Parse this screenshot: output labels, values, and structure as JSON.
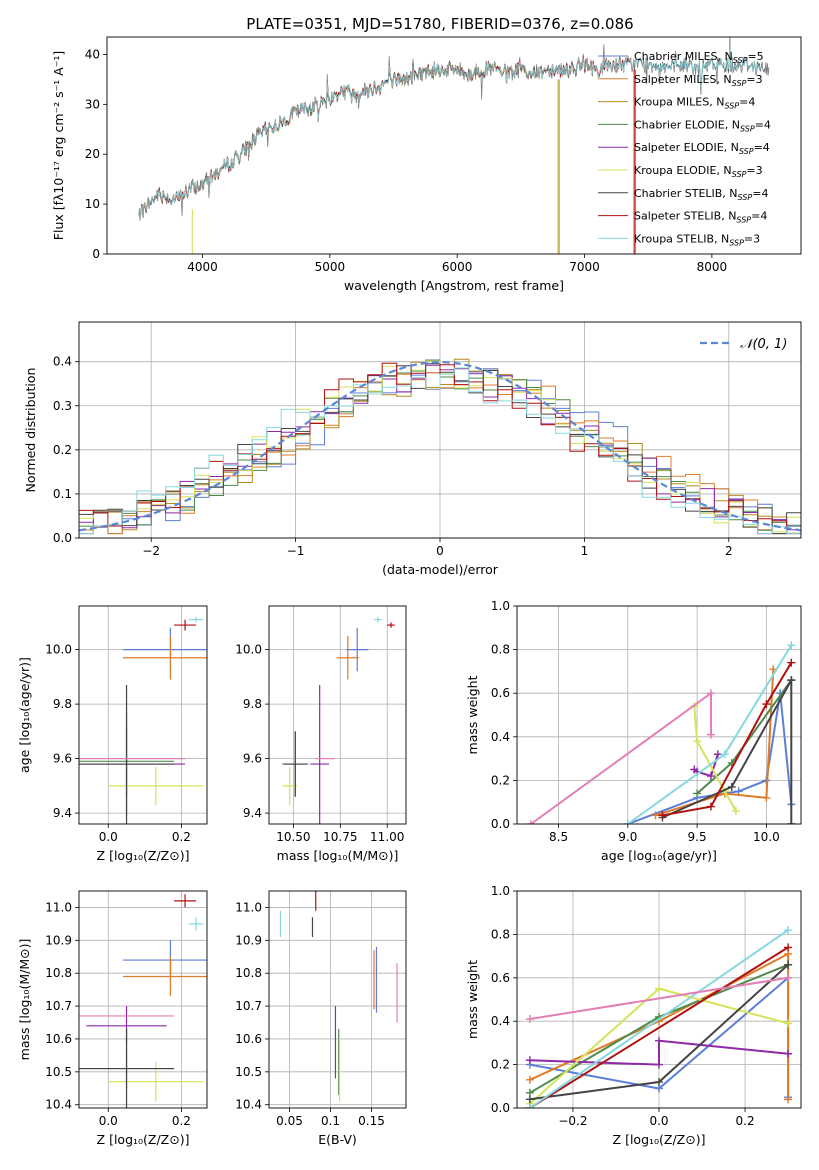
{
  "figure": {
    "title": "PLATE=0351, MJD=51780, FIBERID=0376, z=0.086"
  },
  "palette": {
    "chabrier_miles": "#5b7fd6",
    "salpeter_miles": "#e07b28",
    "kroupa_miles": "#b58b1e",
    "chabrier_elodie": "#4e8a4a",
    "salpeter_elodie": "#8e2aa8",
    "kroupa_elodie": "#d4e35a",
    "chabrier_stelib": "#444444",
    "salpeter_stelib": "#b01010",
    "kroupa_stelib": "#86d8df",
    "pink": "#e37fb5",
    "gaussian": "#5b87d6",
    "grid": "#b0b0b0"
  },
  "chart_data": [
    {
      "id": "spectrum",
      "type": "line",
      "title": "PLATE=0351, MJD=51780, FIBERID=0376, z=0.086",
      "xlabel": "wavelength [Angstrom, rest frame]",
      "ylabel": "Flux [fλ10⁻¹⁷ erg cm⁻² s⁻¹ A⁻¹]",
      "xlim": [
        3250,
        8700
      ],
      "ylim": [
        0,
        43.5
      ],
      "xticks": [
        4000,
        5000,
        6000,
        7000,
        8000
      ],
      "yticks": [
        0,
        10,
        20,
        30,
        40
      ],
      "grid": false,
      "legend_position": "right",
      "continuum": [
        [
          3500,
          8
        ],
        [
          3650,
          12
        ],
        [
          3800,
          11
        ],
        [
          3900,
          13
        ],
        [
          4000,
          14
        ],
        [
          4100,
          16
        ],
        [
          4200,
          18
        ],
        [
          4300,
          20
        ],
        [
          4400,
          23
        ],
        [
          4500,
          25
        ],
        [
          4600,
          26
        ],
        [
          4700,
          28
        ],
        [
          4800,
          29
        ],
        [
          4900,
          30
        ],
        [
          5000,
          31
        ],
        [
          5100,
          33
        ],
        [
          5200,
          32
        ],
        [
          5300,
          33
        ],
        [
          5400,
          34
        ],
        [
          5500,
          35
        ],
        [
          5600,
          35
        ],
        [
          5700,
          36
        ],
        [
          5800,
          37
        ],
        [
          5900,
          37
        ],
        [
          6000,
          37
        ],
        [
          6100,
          36
        ],
        [
          6200,
          37
        ],
        [
          6300,
          37
        ],
        [
          6400,
          36
        ],
        [
          6500,
          37
        ],
        [
          6600,
          36
        ],
        [
          6700,
          37
        ],
        [
          6800,
          37
        ],
        [
          6900,
          37
        ],
        [
          7000,
          38
        ],
        [
          7100,
          37
        ],
        [
          7200,
          38
        ],
        [
          7300,
          38
        ],
        [
          7400,
          38
        ],
        [
          7500,
          38
        ],
        [
          7600,
          38
        ],
        [
          7700,
          37
        ],
        [
          7800,
          38
        ],
        [
          7900,
          37
        ],
        [
          8000,
          38
        ],
        [
          8100,
          38
        ],
        [
          8200,
          38
        ],
        [
          8300,
          38
        ],
        [
          8400,
          37
        ]
      ],
      "series": [
        {
          "name": "Chabrier MILES, N_SSP=5",
          "legend": [
            "Chabrier MILES, N",
            "SSP",
            "=5"
          ],
          "color": "#5b7fd6",
          "start": 3500,
          "end": 7250
        },
        {
          "name": "Salpeter MILES, N_SSP=3",
          "legend": [
            "Salpeter MILES, N",
            "SSP",
            "=3"
          ],
          "color": "#e07b28",
          "start": 3500,
          "end": 7250
        },
        {
          "name": "Kroupa MILES, N_SSP=4",
          "legend": [
            "Kroupa MILES, N",
            "SSP",
            "=4"
          ],
          "color": "#b58b1e",
          "start": 3500,
          "end": 6800
        },
        {
          "name": "Chabrier ELODIE, N_SSP=4",
          "legend": [
            "Chabrier ELODIE, N",
            "SSP",
            "=4"
          ],
          "color": "#4e8a4a",
          "start": 3900,
          "end": 6800
        },
        {
          "name": "Salpeter ELODIE, N_SSP=4",
          "legend": [
            "Salpeter ELODIE, N",
            "SSP",
            "=4"
          ],
          "color": "#8e2aa8",
          "start": 3900,
          "end": 6800
        },
        {
          "name": "Kroupa ELODIE, N_SSP=3",
          "legend": [
            "Kroupa ELODIE, N",
            "SSP",
            "=3"
          ],
          "color": "#d4e35a",
          "start": 3900,
          "end": 6800
        },
        {
          "name": "Chabrier STELIB, N_SSP=4",
          "legend": [
            "Chabrier STELIB, N",
            "SSP",
            "=4"
          ],
          "color": "#444444",
          "start": 3500,
          "end": 8400
        },
        {
          "name": "Salpeter STELIB, N_SSP=4",
          "legend": [
            "Salpeter STELIB, N",
            "SSP",
            "=4"
          ],
          "color": "#b01010",
          "start": 3500,
          "end": 7400
        },
        {
          "name": "Kroupa STELIB, N_SSP=3",
          "legend": [
            "Kroupa STELIB, N",
            "SSP",
            "=3"
          ],
          "color": "#86d8df",
          "start": 3500,
          "end": 8400
        }
      ]
    },
    {
      "id": "residuals",
      "type": "histogram",
      "xlabel": "(data-model)/error",
      "ylabel": "Normed distribution",
      "xlim": [
        -2.5,
        2.5
      ],
      "ylim": [
        0,
        0.49
      ],
      "xticks": [
        -2,
        -1,
        0,
        1,
        2
      ],
      "yticks": [
        0.0,
        0.1,
        0.2,
        0.3,
        0.4
      ],
      "grid": true,
      "legend_position": "top-right",
      "legend": "𝒩(0, 1)",
      "bin_width": 0.1
    },
    {
      "id": "age_vs_Z",
      "type": "scatter",
      "xlabel": "Z [log₁₀(Z/Z⊙)]",
      "ylabel": "age  [log₁₀(age/yr)]",
      "xlim": [
        -0.08,
        0.27
      ],
      "ylim": [
        9.36,
        10.16
      ],
      "xticks": [
        0.0,
        0.2
      ],
      "yticks": [
        9.4,
        9.6,
        9.8,
        10.0
      ],
      "grid": true,
      "points": [
        {
          "color": "#5b7fd6",
          "x": 0.17,
          "xerr": 0.13,
          "y": 10.0,
          "yerr": 0.08
        },
        {
          "color": "#e07b28",
          "x": 0.17,
          "xerr": 0.13,
          "y": 9.97,
          "yerr": 0.08
        },
        {
          "color": "#4e8a4a",
          "x": 0.05,
          "xerr": 0.13,
          "y": 9.59,
          "yerr": 0.13
        },
        {
          "color": "#8e2aa8",
          "x": 0.05,
          "xerr": 0.16,
          "y": 9.58,
          "yerr": 0.19
        },
        {
          "color": "#d4e35a",
          "x": 0.13,
          "xerr": 0.13,
          "y": 9.5,
          "yerr": 0.07
        },
        {
          "color": "#444444",
          "x": 0.05,
          "xerr": 0.13,
          "y": 9.58,
          "yerr": 0.29
        },
        {
          "color": "#b01010",
          "x": 0.21,
          "xerr": 0.03,
          "y": 10.09,
          "yerr": 0.02
        },
        {
          "color": "#86d8df",
          "x": 0.24,
          "xerr": 0.02,
          "y": 10.11,
          "yerr": 0.01
        },
        {
          "color": "#e37fb5",
          "x": 0.05,
          "xerr": 0.16,
          "y": 9.6,
          "yerr": 0.0
        }
      ]
    },
    {
      "id": "age_vs_mass",
      "type": "scatter",
      "xlabel": "mass [log₁₀(M/M⊙)]",
      "xlim": [
        10.37,
        11.1
      ],
      "ylim": [
        9.36,
        10.16
      ],
      "xticks": [
        10.5,
        10.75,
        11.0
      ],
      "yticks": [
        9.4,
        9.6,
        9.8,
        10.0
      ],
      "grid": true,
      "points": [
        {
          "color": "#5b7fd6",
          "x": 10.84,
          "xerr": 0.06,
          "y": 10.0,
          "yerr": 0.08
        },
        {
          "color": "#e07b28",
          "x": 10.79,
          "xerr": 0.06,
          "y": 9.97,
          "yerr": 0.08
        },
        {
          "color": "#4e8a4a",
          "x": 10.51,
          "xerr": 0.07,
          "y": 9.58,
          "yerr": 0.12
        },
        {
          "color": "#8e2aa8",
          "x": 10.64,
          "xerr": 0.05,
          "y": 9.58,
          "yerr": 0.29
        },
        {
          "color": "#d4e35a",
          "x": 10.48,
          "xerr": 0.04,
          "y": 9.5,
          "yerr": 0.07
        },
        {
          "color": "#444444",
          "x": 10.51,
          "xerr": 0.06,
          "y": 9.58,
          "yerr": 0.12
        },
        {
          "color": "#b01010",
          "x": 11.02,
          "xerr": 0.02,
          "y": 10.09,
          "yerr": 0.01
        },
        {
          "color": "#86d8df",
          "x": 10.95,
          "xerr": 0.02,
          "y": 10.11,
          "yerr": 0.01
        },
        {
          "color": "#e37fb5",
          "x": 10.67,
          "xerr": 0.05,
          "y": 9.6,
          "yerr": 0.0
        }
      ]
    },
    {
      "id": "weight_vs_age",
      "type": "line",
      "xlabel": "age  [log₁₀(age/yr)]",
      "ylabel": "mass weight",
      "xlim": [
        8.2,
        10.25
      ],
      "ylim": [
        0,
        1.0
      ],
      "xticks": [
        8.5,
        9.0,
        9.5,
        10.0
      ],
      "yticks": [
        0.0,
        0.2,
        0.4,
        0.6,
        0.8,
        1.0
      ],
      "grid": true,
      "series": [
        {
          "color": "#5b7fd6",
          "points": [
            [
              9.0,
              0.0
            ],
            [
              9.5,
              0.12
            ],
            [
              9.8,
              0.15
            ],
            [
              10.0,
              0.2
            ],
            [
              10.1,
              0.6
            ],
            [
              10.18,
              0.09
            ]
          ]
        },
        {
          "color": "#e07b28",
          "points": [
            [
              9.2,
              0.04
            ],
            [
              9.7,
              0.14
            ],
            [
              10.0,
              0.12
            ],
            [
              10.05,
              0.71
            ]
          ]
        },
        {
          "color": "#4e8a4a",
          "points": [
            [
              9.5,
              0.14
            ],
            [
              9.75,
              0.28
            ],
            [
              10.18,
              0.66
            ]
          ]
        },
        {
          "color": "#8e2aa8",
          "points": [
            [
              9.48,
              0.25
            ],
            [
              9.5,
              0.24
            ],
            [
              9.6,
              0.22
            ],
            [
              9.65,
              0.32
            ]
          ]
        },
        {
          "color": "#d4e35a",
          "points": [
            [
              9.48,
              0.54
            ],
            [
              9.5,
              0.38
            ],
            [
              9.7,
              0.15
            ],
            [
              9.78,
              0.06
            ]
          ]
        },
        {
          "color": "#444444",
          "points": [
            [
              9.25,
              0.03
            ],
            [
              9.75,
              0.17
            ],
            [
              10.18,
              0.66
            ],
            [
              10.18,
              0.0
            ]
          ]
        },
        {
          "color": "#b01010",
          "points": [
            [
              9.25,
              0.04
            ],
            [
              9.6,
              0.08
            ],
            [
              10.0,
              0.55
            ],
            [
              10.18,
              0.74
            ]
          ]
        },
        {
          "color": "#86d8df",
          "points": [
            [
              9.0,
              0.0
            ],
            [
              9.7,
              0.32
            ],
            [
              10.18,
              0.82
            ]
          ]
        },
        {
          "color": "#e37fb5",
          "points": [
            [
              8.3,
              0.0
            ],
            [
              9.6,
              0.6
            ],
            [
              9.6,
              0.41
            ]
          ]
        }
      ]
    },
    {
      "id": "mass_vs_Z",
      "type": "scatter",
      "xlabel": "Z [log₁₀(Z/Z⊙)]",
      "ylabel": "mass [log₁₀(M/M⊙)]",
      "xlim": [
        -0.08,
        0.27
      ],
      "ylim": [
        10.39,
        11.05
      ],
      "xticks": [
        0.0,
        0.2
      ],
      "yticks": [
        10.4,
        10.5,
        10.6,
        10.7,
        10.8,
        10.9,
        11.0
      ],
      "grid": true,
      "points": [
        {
          "color": "#5b7fd6",
          "x": 0.17,
          "xerr": 0.13,
          "y": 10.84,
          "yerr": 0.06
        },
        {
          "color": "#e07b28",
          "x": 0.17,
          "xerr": 0.13,
          "y": 10.79,
          "yerr": 0.06
        },
        {
          "color": "#4e8a4a",
          "x": 0.05,
          "xerr": 0.13,
          "y": 10.51,
          "yerr": 0.06
        },
        {
          "color": "#8e2aa8",
          "x": 0.05,
          "xerr": 0.11,
          "y": 10.64,
          "yerr": 0.06
        },
        {
          "color": "#d4e35a",
          "x": 0.13,
          "xerr": 0.13,
          "y": 10.47,
          "yerr": 0.06
        },
        {
          "color": "#444444",
          "x": 0.05,
          "xerr": 0.13,
          "y": 10.51,
          "yerr": 0.12
        },
        {
          "color": "#b01010",
          "x": 0.21,
          "xerr": 0.03,
          "y": 11.02,
          "yerr": 0.02
        },
        {
          "color": "#86d8df",
          "x": 0.24,
          "xerr": 0.02,
          "y": 10.95,
          "yerr": 0.02
        },
        {
          "color": "#e37fb5",
          "x": 0.05,
          "xerr": 0.13,
          "y": 10.67,
          "yerr": 0.0
        }
      ]
    },
    {
      "id": "mass_vs_ebv",
      "type": "scatter",
      "xlabel": "E(B-V)",
      "xlim": [
        0.025,
        0.192
      ],
      "ylim": [
        10.39,
        11.05
      ],
      "xticks": [
        0.05,
        0.1,
        0.15
      ],
      "yticks": [
        10.4,
        10.5,
        10.6,
        10.7,
        10.8,
        10.9,
        11.0
      ],
      "grid": true,
      "points": [
        {
          "color": "#5b7fd6",
          "x": 0.156,
          "xerr": 0,
          "y": 10.78,
          "yerr": 0.1
        },
        {
          "color": "#e07b28",
          "x": 0.153,
          "xerr": 0,
          "y": 10.78,
          "yerr": 0.09
        },
        {
          "color": "#4e8a4a",
          "x": 0.11,
          "xerr": 0,
          "y": 10.53,
          "yerr": 0.1
        },
        {
          "color": "#8e2aa8",
          "x": 0.106,
          "xerr": 0,
          "y": 10.59,
          "yerr": 0.11
        },
        {
          "color": "#d4e35a",
          "x": 0.111,
          "xerr": 0,
          "y": 10.51,
          "yerr": 0.1
        },
        {
          "color": "#444444",
          "x": 0.078,
          "xerr": 0,
          "y": 10.94,
          "yerr": 0.03
        },
        {
          "color": "#b01010",
          "x": 0.082,
          "xerr": 0,
          "y": 11.02,
          "yerr": 0.03
        },
        {
          "color": "#86d8df",
          "x": 0.039,
          "xerr": 0,
          "y": 10.95,
          "yerr": 0.04
        },
        {
          "color": "#e37fb5",
          "x": 0.181,
          "xerr": 0,
          "y": 10.74,
          "yerr": 0.09
        }
      ]
    },
    {
      "id": "weight_vs_Z",
      "type": "line",
      "xlabel": "Z [log₁₀(Z/Z⊙)]",
      "ylabel": "mass weight",
      "xlim": [
        -0.33,
        0.33
      ],
      "ylim": [
        0,
        1.0
      ],
      "xticks": [
        -0.2,
        0.0,
        0.2
      ],
      "yticks": [
        0.0,
        0.2,
        0.4,
        0.6,
        0.8,
        1.0
      ],
      "grid": true,
      "series": [
        {
          "color": "#5b7fd6",
          "points": [
            [
              -0.3,
              0.2
            ],
            [
              0.0,
              0.09
            ],
            [
              0.3,
              0.6
            ],
            [
              0.3,
              0.05
            ]
          ]
        },
        {
          "color": "#e07b28",
          "points": [
            [
              -0.3,
              0.13
            ],
            [
              0.0,
              0.4
            ],
            [
              0.3,
              0.71
            ],
            [
              0.3,
              0.04
            ]
          ]
        },
        {
          "color": "#4e8a4a",
          "points": [
            [
              -0.3,
              0.07
            ],
            [
              0.0,
              0.42
            ],
            [
              0.3,
              0.66
            ]
          ]
        },
        {
          "color": "#8e2aa8",
          "points": [
            [
              -0.3,
              0.22
            ],
            [
              0.0,
              0.2
            ],
            [
              0.0,
              0.31
            ],
            [
              0.3,
              0.25
            ]
          ]
        },
        {
          "color": "#d4e35a",
          "points": [
            [
              -0.3,
              0.02
            ],
            [
              0.0,
              0.55
            ],
            [
              0.3,
              0.39
            ]
          ]
        },
        {
          "color": "#444444",
          "points": [
            [
              -0.3,
              0.04
            ],
            [
              0.0,
              0.12
            ],
            [
              0.3,
              0.66
            ]
          ]
        },
        {
          "color": "#b01010",
          "points": [
            [
              -0.3,
              0.0
            ],
            [
              0.3,
              0.74
            ]
          ]
        },
        {
          "color": "#86d8df",
          "points": [
            [
              -0.3,
              0.0
            ],
            [
              0.3,
              0.82
            ]
          ]
        },
        {
          "color": "#e37fb5",
          "points": [
            [
              -0.3,
              0.41
            ],
            [
              0.3,
              0.6
            ]
          ]
        }
      ]
    }
  ]
}
